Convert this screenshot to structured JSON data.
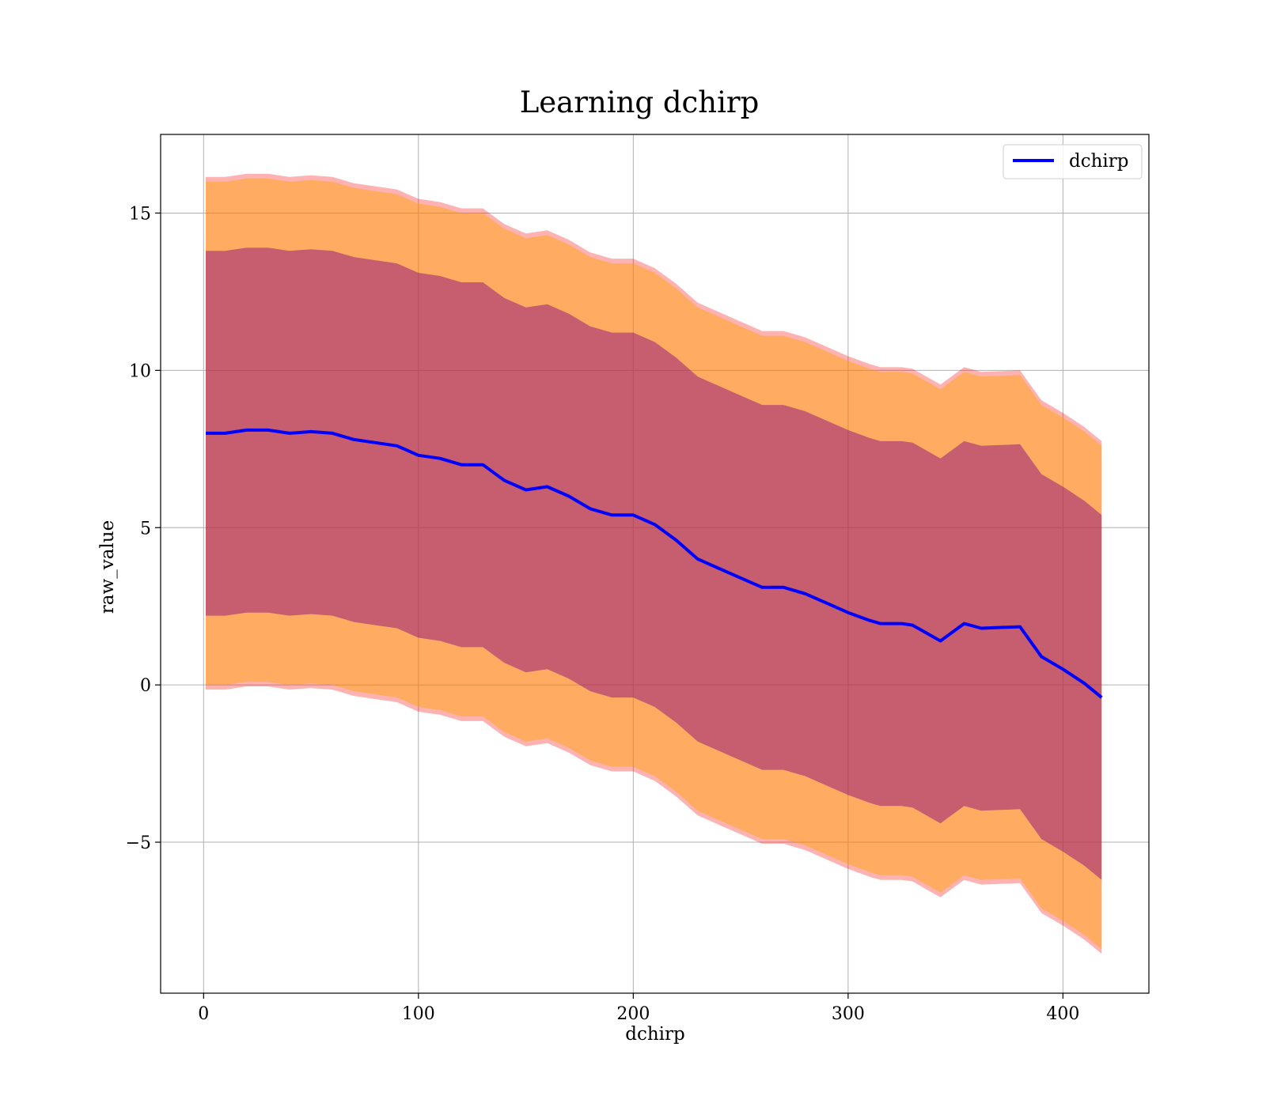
{
  "chart_data": {
    "type": "area",
    "title": "Learning dchirp",
    "xlabel": "dchirp",
    "ylabel": "raw_value",
    "xlim": [
      -20,
      440
    ],
    "ylim": [
      -9.8,
      17.5
    ],
    "xticks": [
      0,
      100,
      200,
      300,
      400
    ],
    "xtick_labels": [
      "0",
      "100",
      "200",
      "300",
      "400"
    ],
    "yticks": [
      -5,
      0,
      5,
      10,
      15
    ],
    "ytick_labels": [
      "−5",
      "0",
      "5",
      "10",
      "15"
    ],
    "grid": true,
    "legend_position": "top-right",
    "series": [
      {
        "name": "dchirp",
        "color": "#0000ff",
        "x": [
          1,
          10,
          20,
          30,
          40,
          50,
          60,
          70,
          80,
          90,
          100,
          110,
          120,
          130,
          140,
          150,
          160,
          170,
          180,
          190,
          200,
          210,
          220,
          230,
          240,
          250,
          260,
          270,
          280,
          290,
          300,
          310,
          315,
          320,
          325,
          330,
          343,
          354,
          362,
          380,
          390,
          400,
          410,
          418
        ],
        "values": [
          8.0,
          8.0,
          8.1,
          8.1,
          8.0,
          8.05,
          8.0,
          7.8,
          7.7,
          7.6,
          7.3,
          7.2,
          7.0,
          7.0,
          6.5,
          6.2,
          6.3,
          6.0,
          5.6,
          5.4,
          5.4,
          5.1,
          4.6,
          4.0,
          3.7,
          3.4,
          3.1,
          3.1,
          2.9,
          2.6,
          2.3,
          2.05,
          1.95,
          1.95,
          1.95,
          1.9,
          1.4,
          1.95,
          1.8,
          1.85,
          0.9,
          0.5,
          0.05,
          -0.4
        ],
        "band_inner_halfwidth": 5.8,
        "band_outer_halfwidth": 8.0,
        "band_outer_edge_halfwidth": 8.15,
        "band_inner_color": "#800080",
        "band_outer_color": "#ffa500",
        "band_outer_edge_color": "#ff0000"
      }
    ]
  }
}
